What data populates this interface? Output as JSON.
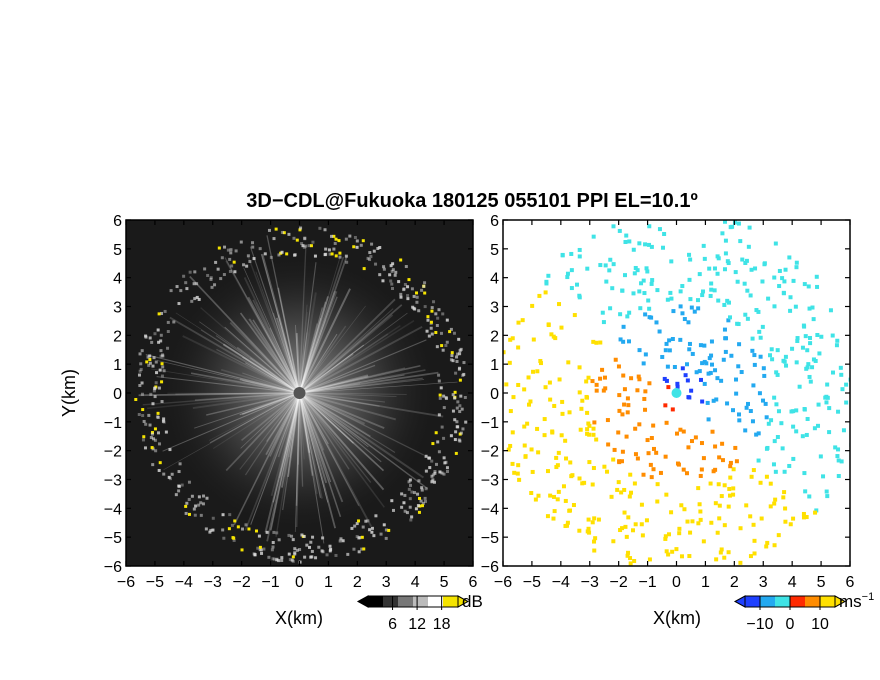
{
  "title": "3D−CDL@Fukuoka 180125 055101 PPI EL=10.1º",
  "chart_data": [
    {
      "type": "heatmap",
      "panel": "reflectivity",
      "xlabel": "X(km)",
      "ylabel": "Y(km)",
      "xlim": [
        -6,
        6
      ],
      "ylim": [
        -6,
        6
      ],
      "x_ticks": [
        "−6",
        "−5",
        "−4",
        "−3",
        "−2",
        "−1",
        "0",
        "1",
        "2",
        "3",
        "4",
        "5",
        "6"
      ],
      "y_ticks": [
        "6",
        "5",
        "4",
        "3",
        "2",
        "1",
        "0",
        "−1",
        "−2",
        "−3",
        "−4",
        "−5",
        "−6"
      ],
      "colorbar": {
        "unit": "dB",
        "ticks": [
          "6",
          "12",
          "18"
        ],
        "tick_values": [
          6,
          12,
          18
        ],
        "range": [
          0,
          22
        ],
        "colors": [
          "#000000",
          "#333333",
          "#777777",
          "#bbbbbb",
          "#ffffff",
          "#f5e400"
        ]
      },
      "ring_radius_km": 5.3,
      "center_color": "#555555"
    },
    {
      "type": "heatmap",
      "panel": "doppler velocity",
      "xlabel": "X(km)",
      "ylabel": "",
      "xlim": [
        -6,
        6
      ],
      "ylim": [
        -6,
        6
      ],
      "x_ticks": [
        "−6",
        "−5",
        "−4",
        "−3",
        "−2",
        "−1",
        "0",
        "1",
        "2",
        "3",
        "4",
        "5",
        "6"
      ],
      "y_ticks": [
        "6",
        "5",
        "4",
        "3",
        "2",
        "1",
        "0",
        "−1",
        "−2",
        "−3",
        "−4",
        "−5",
        "−6"
      ],
      "colorbar": {
        "unit": "ms",
        "unit_exp": "−1",
        "ticks": [
          "−10",
          "0",
          "10"
        ],
        "tick_values": [
          -10,
          0,
          10
        ],
        "range": [
          -15,
          15
        ],
        "colors": [
          "#1e40ff",
          "#23a9f0",
          "#3fe3e6",
          "#ff2a00",
          "#ff8c00",
          "#ffe000"
        ]
      },
      "wind_direction_deg": 130
    }
  ]
}
